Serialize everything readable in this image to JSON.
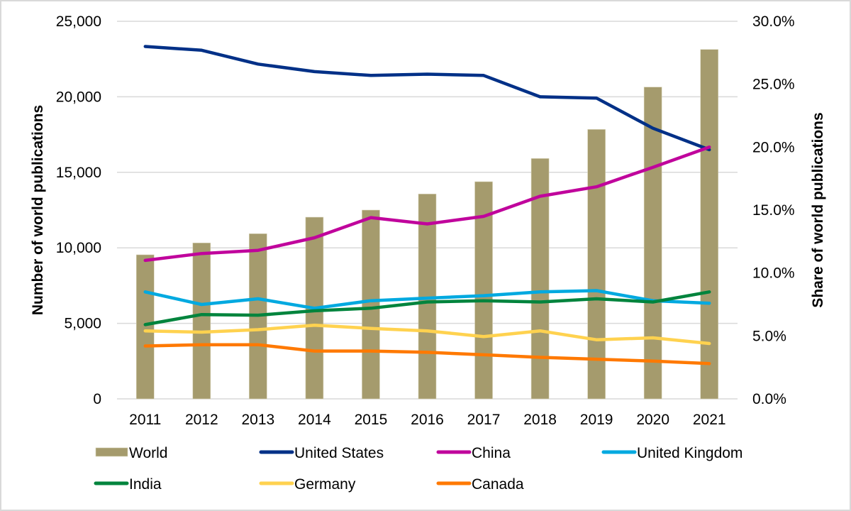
{
  "chart_data": {
    "type": "bar+line",
    "title": "",
    "categories": [
      "2011",
      "2012",
      "2013",
      "2014",
      "2015",
      "2016",
      "2017",
      "2018",
      "2019",
      "2020",
      "2021"
    ],
    "left_axis": {
      "label": "Number of world publications",
      "ylim": [
        0,
        25000
      ],
      "ticks": [
        0,
        5000,
        10000,
        15000,
        20000,
        25000
      ],
      "tick_labels": [
        "0",
        "5,000",
        "10,000",
        "15,000",
        "20,000",
        "25,000"
      ]
    },
    "right_axis": {
      "label": "Share of world publications",
      "ylim": [
        0,
        30
      ],
      "ticks": [
        0,
        5,
        10,
        15,
        20,
        25,
        30
      ],
      "tick_labels": [
        "0.0%",
        "5.0%",
        "10.0%",
        "15.0%",
        "20.0%",
        "25.0%",
        "30.0%"
      ]
    },
    "grid": true,
    "legend_position": "bottom",
    "bar_series": {
      "name": "World",
      "axis": "left",
      "color": "#a59b6d",
      "values": [
        9540,
        10325,
        10935,
        12030,
        12500,
        13565,
        14380,
        15915,
        17840,
        20645,
        23135
      ]
    },
    "line_series": [
      {
        "name": "United States",
        "axis": "right",
        "color": "#003087",
        "values": [
          28.0,
          27.7,
          26.6,
          26.0,
          25.7,
          25.8,
          25.7,
          24.0,
          23.9,
          21.5,
          19.8
        ]
      },
      {
        "name": "China",
        "axis": "right",
        "color": "#c0049c",
        "values": [
          11.0,
          11.55,
          11.8,
          12.8,
          14.4,
          13.9,
          14.5,
          16.1,
          16.85,
          18.4,
          20.0
        ]
      },
      {
        "name": "United Kingdom",
        "axis": "right",
        "color": "#00a9e0",
        "values": [
          8.5,
          7.5,
          7.95,
          7.2,
          7.8,
          8.0,
          8.2,
          8.5,
          8.6,
          7.8,
          7.6
        ]
      },
      {
        "name": "India",
        "axis": "right",
        "color": "#00843d",
        "values": [
          5.9,
          6.7,
          6.65,
          7.0,
          7.2,
          7.7,
          7.8,
          7.7,
          7.95,
          7.7,
          8.5
        ]
      },
      {
        "name": "Germany",
        "axis": "right",
        "color": "#ffd24f",
        "values": [
          5.4,
          5.3,
          5.5,
          5.85,
          5.6,
          5.4,
          4.95,
          5.4,
          4.7,
          4.85,
          4.4
        ]
      },
      {
        "name": "Canada",
        "axis": "right",
        "color": "#ff7900",
        "values": [
          4.2,
          4.3,
          4.3,
          3.8,
          3.8,
          3.7,
          3.5,
          3.3,
          3.15,
          3.0,
          2.8
        ]
      }
    ],
    "legend": [
      {
        "name": "World",
        "kind": "bar",
        "color": "#a59b6d"
      },
      {
        "name": "United States",
        "kind": "line",
        "color": "#003087"
      },
      {
        "name": "China",
        "kind": "line",
        "color": "#c0049c"
      },
      {
        "name": "United Kingdom",
        "kind": "line",
        "color": "#00a9e0"
      },
      {
        "name": "India",
        "kind": "line",
        "color": "#00843d"
      },
      {
        "name": "Germany",
        "kind": "line",
        "color": "#ffd24f"
      },
      {
        "name": "Canada",
        "kind": "line",
        "color": "#ff7900"
      }
    ]
  }
}
